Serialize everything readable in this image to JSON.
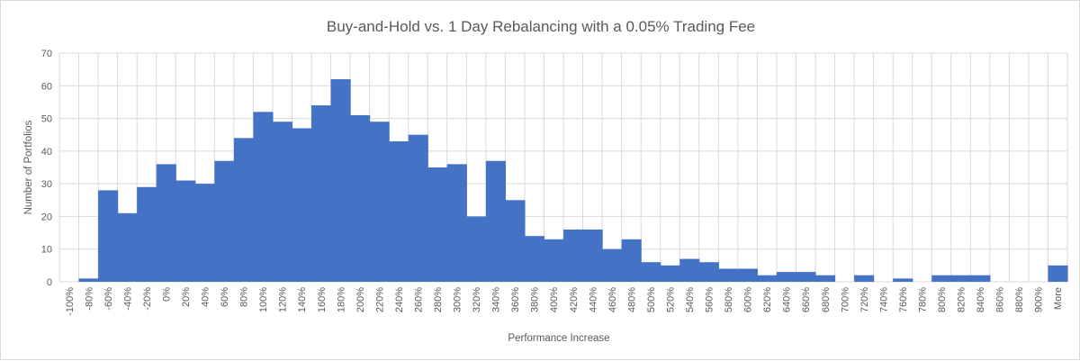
{
  "chart_data": {
    "type": "bar",
    "title": "Buy-and-Hold vs. 1 Day Rebalancing with a 0.05% Trading Fee",
    "xlabel": "Performance Increase",
    "ylabel": "Number of Portfolios",
    "ylim": [
      0,
      70
    ],
    "yticks": [
      0,
      10,
      20,
      30,
      40,
      50,
      60,
      70
    ],
    "grid": true,
    "legend": "none",
    "bar_color": "#4472c4",
    "categories": [
      "-100%",
      "-80%",
      "-60%",
      "-40%",
      "-20%",
      "0%",
      "20%",
      "40%",
      "60%",
      "80%",
      "100%",
      "120%",
      "140%",
      "160%",
      "180%",
      "200%",
      "220%",
      "240%",
      "260%",
      "280%",
      "300%",
      "320%",
      "340%",
      "360%",
      "380%",
      "400%",
      "420%",
      "440%",
      "460%",
      "480%",
      "500%",
      "520%",
      "540%",
      "560%",
      "580%",
      "600%",
      "620%",
      "640%",
      "660%",
      "680%",
      "700%",
      "720%",
      "740%",
      "760%",
      "780%",
      "800%",
      "820%",
      "840%",
      "860%",
      "880%",
      "900%",
      "More"
    ],
    "values": [
      0,
      1,
      28,
      21,
      29,
      36,
      31,
      30,
      37,
      44,
      52,
      49,
      47,
      54,
      62,
      51,
      49,
      43,
      45,
      35,
      36,
      20,
      37,
      25,
      14,
      13,
      16,
      16,
      10,
      13,
      6,
      5,
      7,
      6,
      4,
      4,
      2,
      3,
      3,
      2,
      0,
      2,
      0,
      1,
      0,
      2,
      2,
      2,
      0,
      0,
      0,
      5
    ],
    "tick_labels": [
      "-100%",
      "-80%",
      "-60%",
      "-40%",
      "-20%",
      "0%",
      "20%",
      "40%",
      "60%",
      "80%",
      "100%",
      "120%",
      "140%",
      "160%",
      "180%",
      "200%",
      "220%",
      "240%",
      "260%",
      "280%",
      "300%",
      "320%",
      "340%",
      "360%",
      "380%",
      "400%",
      "420%",
      "440%",
      "460%",
      "480%",
      "500%",
      "520%",
      "540%",
      "560%",
      "580%",
      "600%",
      "620%",
      "640%",
      "660%",
      "680%",
      "700%",
      "720%",
      "740%",
      "760%",
      "780%",
      "800%",
      "820%",
      "840%",
      "860%",
      "880%",
      "900%",
      "More"
    ]
  }
}
